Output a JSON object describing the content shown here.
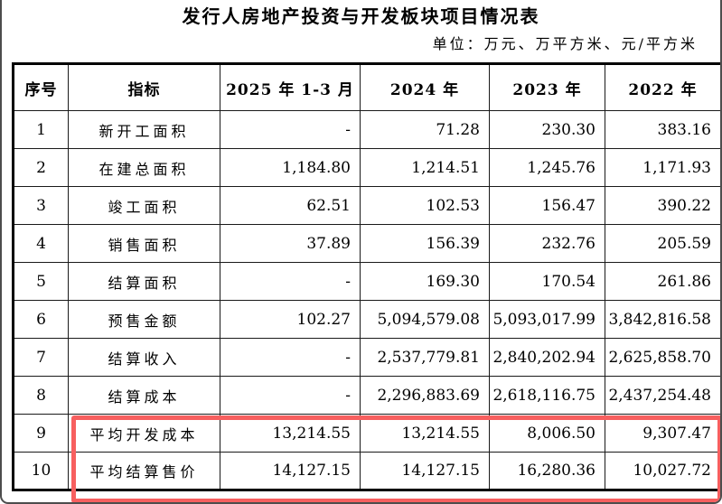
{
  "page": {
    "title": "发行人房地产投资与开发板块项目情况表",
    "unit_note": "单位：万元、万平方米、元/平方米"
  },
  "table": {
    "headers": [
      "序号",
      "指标",
      "2025 年 1-3 月",
      "2024 年",
      "2023 年",
      "2022 年"
    ],
    "rows": [
      {
        "no": "1",
        "indicator": "新开工面积",
        "values": [
          "-",
          "71.28",
          "230.30",
          "383.16"
        ]
      },
      {
        "no": "2",
        "indicator": "在建总面积",
        "values": [
          "1,184.80",
          "1,214.51",
          "1,245.76",
          "1,171.93"
        ]
      },
      {
        "no": "3",
        "indicator": "竣工面积",
        "values": [
          "62.51",
          "102.53",
          "156.47",
          "390.22"
        ]
      },
      {
        "no": "4",
        "indicator": "销售面积",
        "values": [
          "37.89",
          "156.39",
          "232.76",
          "205.59"
        ]
      },
      {
        "no": "5",
        "indicator": "结算面积",
        "values": [
          "-",
          "169.30",
          "170.54",
          "261.86"
        ]
      },
      {
        "no": "6",
        "indicator": "预售金额",
        "values": [
          "102.27",
          "5,094,579.08",
          "5,093,017.99",
          "3,842,816.58"
        ]
      },
      {
        "no": "7",
        "indicator": "结算收入",
        "values": [
          "-",
          "2,537,779.81",
          "2,840,202.94",
          "2,625,858.70"
        ]
      },
      {
        "no": "8",
        "indicator": "结算成本",
        "values": [
          "-",
          "2,296,883.69",
          "2,618,116.75",
          "2,437,254.48"
        ]
      },
      {
        "no": "9",
        "indicator": "平均开发成本",
        "values": [
          "13,214.55",
          "13,214.55",
          "8,006.50",
          "9,307.47"
        ]
      },
      {
        "no": "10",
        "indicator": "平均结算售价",
        "values": [
          "14,127.15",
          "14,127.15",
          "16,280.36",
          "10,027.72"
        ]
      }
    ],
    "highlight": {
      "highlighted_row_numbers": [
        "9",
        "10"
      ],
      "color": "#f75f5f"
    }
  }
}
